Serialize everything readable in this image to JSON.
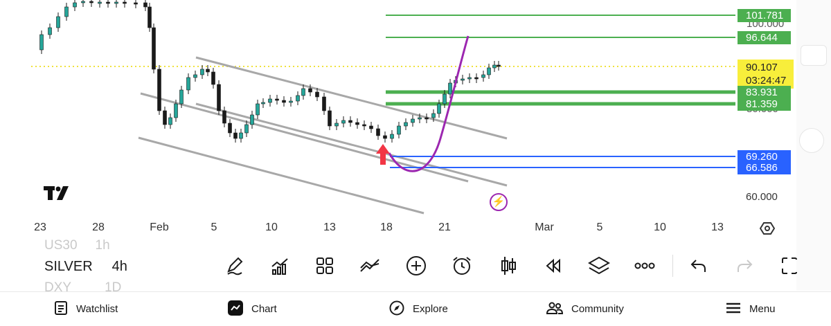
{
  "chart": {
    "x_labels": [
      "23",
      "28",
      "Feb",
      "5",
      "10",
      "13",
      "18",
      "21",
      "Mar",
      "5",
      "10",
      "13"
    ],
    "price_labels": [
      {
        "value": "101.781",
        "color": "#4caf50"
      },
      {
        "value": "100.000",
        "color": "#555555"
      },
      {
        "value": "96.644",
        "color": "#4caf50"
      },
      {
        "value": "83.931",
        "color": "#4caf50"
      },
      {
        "value": "81.359",
        "color": "#4caf50"
      },
      {
        "value": "80.000",
        "color": "#555555"
      },
      {
        "value": "69.260",
        "color": "#2962ff"
      },
      {
        "value": "66.586",
        "color": "#2962ff"
      },
      {
        "value": "60.000",
        "color": "#333333"
      }
    ],
    "current_price": "90.107",
    "countdown": "03:24:47",
    "colors": {
      "support_resistance": "#4caf50",
      "demand_zone": "#2962ff",
      "current_price": "#f8ee3b",
      "channel": "#a8a8a8",
      "projection": "#9c27b0",
      "arrow": "#f23645",
      "candle_up": "#26a69a",
      "candle_down": "#1a1a1a"
    },
    "icons": [
      "tradingview-logo-icon",
      "lightning-icon",
      "settings-icon"
    ]
  },
  "toolbar": {
    "symbols_above": [
      "US30",
      "1h"
    ],
    "symbol": "SILVER",
    "interval": "4h",
    "symbols_below": [
      "DXY",
      "1D"
    ],
    "tools": [
      "draw-icon",
      "indicators-icon",
      "layout-grid-icon",
      "compare-icon",
      "add-icon",
      "alert-icon",
      "candles-icon",
      "replay-icon",
      "layers-icon",
      "more-icon",
      "undo-icon",
      "redo-icon",
      "fullscreen-icon"
    ]
  },
  "nav": {
    "items": [
      {
        "label": "Watchlist",
        "icon": "watchlist-icon"
      },
      {
        "label": "Chart",
        "icon": "chart-icon"
      },
      {
        "label": "Explore",
        "icon": "compass-icon"
      },
      {
        "label": "Community",
        "icon": "community-icon"
      },
      {
        "label": "Menu",
        "icon": "menu-icon"
      }
    ]
  }
}
